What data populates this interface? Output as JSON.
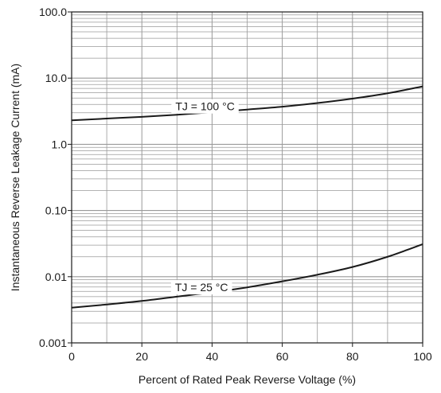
{
  "chart_data": {
    "type": "line",
    "title": "",
    "xlabel": "Percent of Rated Peak Reverse Voltage (%)",
    "ylabel": "Instantaneous Reverse Leakage Current (mA)",
    "xlim": [
      0,
      100
    ],
    "ylim": [
      0.001,
      100
    ],
    "yscale": "log",
    "grid": true,
    "x_ticks": [
      0,
      20,
      40,
      60,
      80,
      100
    ],
    "x_tick_labels": [
      "0",
      "20",
      "40",
      "60",
      "80",
      "100"
    ],
    "y_ticks": [
      0.001,
      0.01,
      0.1,
      1,
      10,
      100
    ],
    "y_tick_labels": [
      "0.001",
      "0.01",
      "0.10",
      "1.0",
      "10.0",
      "100.0"
    ],
    "series": [
      {
        "name": "TJ = 100 °C",
        "x": [
          0,
          10,
          20,
          30,
          40,
          50,
          60,
          70,
          80,
          90,
          100
        ],
        "y": [
          2.3,
          2.45,
          2.6,
          2.8,
          3.05,
          3.35,
          3.7,
          4.2,
          4.9,
          5.9,
          7.5
        ]
      },
      {
        "name": "TJ = 25 °C",
        "x": [
          0,
          10,
          20,
          30,
          40,
          50,
          60,
          70,
          80,
          90,
          100
        ],
        "y": [
          0.0034,
          0.0038,
          0.0043,
          0.005,
          0.0058,
          0.0069,
          0.0085,
          0.0107,
          0.014,
          0.02,
          0.031
        ]
      }
    ],
    "colors": {
      "line": "#1a1a1a",
      "grid": "#9a9a9a",
      "axis": "#1a1a1a"
    }
  }
}
